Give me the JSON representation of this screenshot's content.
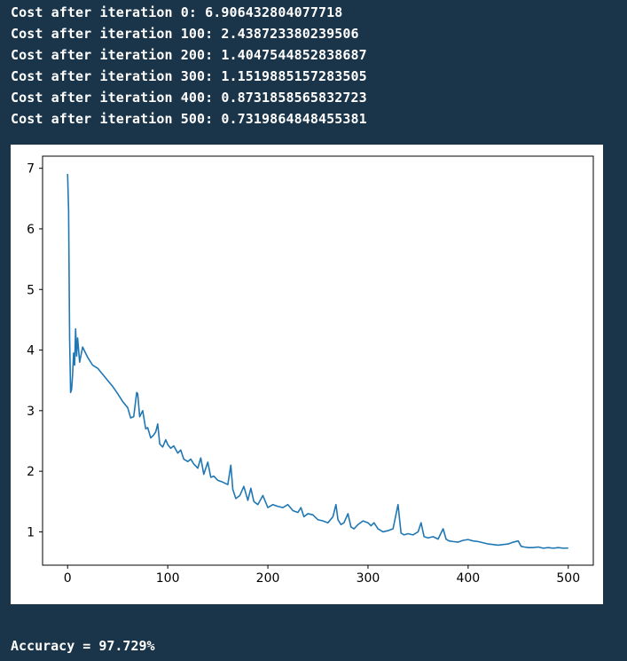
{
  "output": {
    "lines": [
      "Cost after iteration 0: 6.906432804077718",
      "Cost after iteration 100: 2.438723380239506",
      "Cost after iteration 200: 1.4047544852838687",
      "Cost after iteration 300: 1.1519885157283505",
      "Cost after iteration 400: 0.8731858565832723",
      "Cost after iteration 500: 0.7319864848455381"
    ],
    "accuracy": "Accuracy = 97.729%"
  },
  "chart_data": {
    "type": "line",
    "title": "",
    "xlabel": "",
    "ylabel": "",
    "xlim": [
      -25,
      525
    ],
    "ylim": [
      0.45,
      7.2
    ],
    "xticks": [
      0,
      100,
      200,
      300,
      400,
      500
    ],
    "yticks": [
      1,
      2,
      3,
      4,
      5,
      6,
      7
    ],
    "grid": false,
    "color": "#1f77b4",
    "series": [
      {
        "x": [
          0,
          1,
          2,
          3,
          4,
          5,
          6,
          7,
          8,
          9,
          10,
          12,
          15,
          20,
          25,
          30,
          35,
          40,
          45,
          50,
          55,
          60,
          63,
          66,
          69,
          70,
          72,
          75,
          78,
          80,
          83,
          86,
          88,
          90,
          92,
          95,
          98,
          100,
          103,
          106,
          110,
          113,
          116,
          120,
          123,
          126,
          130,
          133,
          136,
          140,
          143,
          146,
          150,
          155,
          160,
          163,
          165,
          168,
          172,
          176,
          180,
          183,
          186,
          190,
          195,
          200,
          205,
          210,
          215,
          220,
          225,
          230,
          233,
          236,
          240,
          245,
          250,
          255,
          260,
          265,
          268,
          270,
          273,
          276,
          280,
          283,
          286,
          290,
          295,
          300,
          303,
          306,
          310,
          315,
          320,
          325,
          330,
          333,
          336,
          340,
          345,
          350,
          353,
          356,
          360,
          365,
          370,
          375,
          378,
          381,
          385,
          390,
          395,
          400,
          405,
          410,
          415,
          420,
          430,
          440,
          445,
          450,
          453,
          456,
          460,
          465,
          470,
          475,
          480,
          485,
          490,
          495,
          500
        ],
        "y": [
          6.906,
          6.3,
          4.2,
          3.3,
          3.35,
          3.6,
          3.95,
          3.75,
          4.35,
          3.9,
          4.2,
          3.8,
          4.05,
          3.88,
          3.75,
          3.7,
          3.6,
          3.5,
          3.4,
          3.28,
          3.15,
          3.05,
          2.88,
          2.9,
          3.3,
          3.28,
          2.9,
          3.0,
          2.7,
          2.72,
          2.55,
          2.6,
          2.65,
          2.78,
          2.45,
          2.4,
          2.52,
          2.44,
          2.38,
          2.42,
          2.3,
          2.35,
          2.2,
          2.16,
          2.2,
          2.12,
          2.05,
          2.22,
          1.95,
          2.15,
          1.9,
          1.92,
          1.85,
          1.82,
          1.78,
          2.1,
          1.7,
          1.55,
          1.6,
          1.75,
          1.52,
          1.72,
          1.5,
          1.45,
          1.6,
          1.4,
          1.45,
          1.42,
          1.4,
          1.45,
          1.35,
          1.32,
          1.4,
          1.25,
          1.3,
          1.28,
          1.2,
          1.18,
          1.15,
          1.25,
          1.45,
          1.2,
          1.12,
          1.15,
          1.3,
          1.08,
          1.05,
          1.12,
          1.18,
          1.15,
          1.1,
          1.15,
          1.05,
          1.0,
          1.02,
          1.05,
          1.45,
          0.98,
          0.95,
          0.97,
          0.95,
          1.0,
          1.15,
          0.92,
          0.9,
          0.92,
          0.88,
          1.05,
          0.88,
          0.85,
          0.84,
          0.83,
          0.86,
          0.873,
          0.85,
          0.84,
          0.82,
          0.8,
          0.78,
          0.8,
          0.83,
          0.85,
          0.76,
          0.75,
          0.74,
          0.74,
          0.75,
          0.73,
          0.74,
          0.73,
          0.74,
          0.73,
          0.732
        ]
      }
    ]
  }
}
